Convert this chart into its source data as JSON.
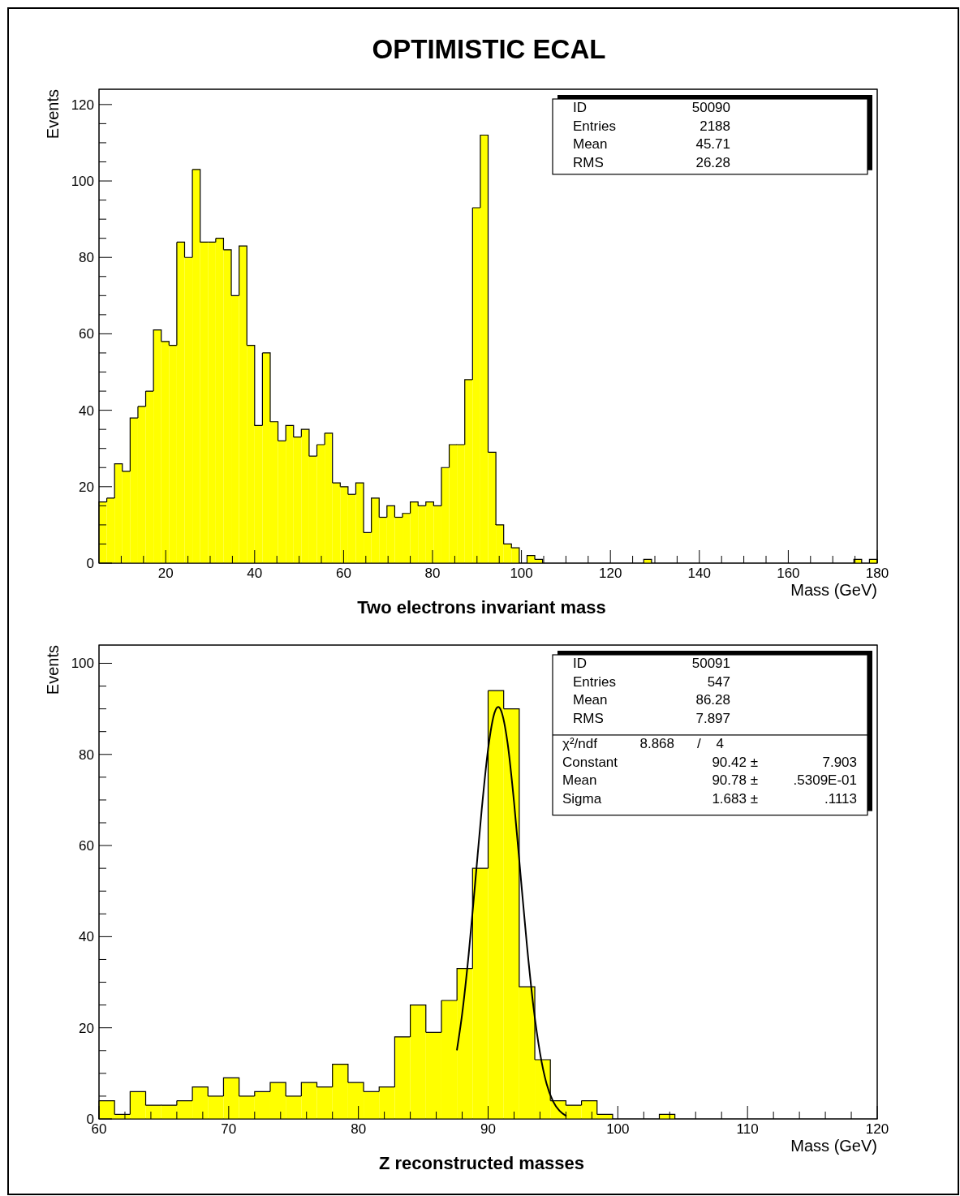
{
  "chart_data": [
    {
      "type": "histogram",
      "title": "OPTIMISTIC ECAL",
      "subtitle": "Two electrons invariant mass",
      "xlabel": "Mass (GeV)",
      "ylabel": "Events",
      "color": "#ffff00",
      "bins": [
        5,
        6.75,
        8.5,
        10.25,
        12,
        13.75,
        15.5,
        17.25,
        19,
        20.75,
        22.5,
        24.25,
        26,
        27.75,
        29.5,
        31.25,
        33,
        34.75,
        36.5,
        38.25,
        40,
        41.75,
        43.5,
        45.25,
        47,
        48.75,
        50.5,
        52.25,
        54,
        55.75,
        57.5,
        59.25,
        61,
        62.75,
        64.5,
        66.25,
        68,
        69.75,
        71.5,
        73.25,
        75,
        76.75,
        78.5,
        80.25,
        82,
        83.75,
        85.5,
        87.25,
        89,
        90.75,
        92.5,
        94.25,
        96,
        97.75,
        99.5,
        101.25,
        103,
        104.75,
        106.5,
        108.25,
        110,
        111.75,
        113.5,
        115.25,
        117,
        118.75,
        120.5,
        122.25,
        124,
        125.75,
        127.5,
        129.25,
        131,
        132.75,
        134.5,
        136.25,
        138,
        139.75,
        141.5,
        143.25,
        145,
        146.75,
        148.5,
        150.25,
        152,
        153.75,
        155.5,
        157.25,
        159,
        160.75,
        162.5,
        164.25,
        166,
        167.75,
        169.5,
        171.25,
        173,
        174.75,
        176.5,
        178.25,
        180
      ],
      "values": [
        16,
        17,
        26,
        24,
        38,
        41,
        45,
        61,
        58,
        57,
        84,
        80,
        103,
        84,
        84,
        85,
        82,
        70,
        83,
        57,
        36,
        55,
        37,
        32,
        36,
        33,
        35,
        28,
        31,
        34,
        21,
        20,
        18,
        21,
        8,
        17,
        12,
        15,
        12,
        13,
        16,
        15,
        16,
        15,
        25,
        31,
        31,
        48,
        93,
        112,
        29,
        10,
        5,
        4,
        0,
        2,
        1,
        0,
        0,
        0,
        0,
        0,
        0,
        0,
        0,
        0,
        0,
        0,
        0,
        0,
        1,
        0,
        0,
        0,
        0,
        0,
        0,
        0,
        0,
        0,
        0,
        0,
        0,
        0,
        0,
        0,
        0,
        0,
        0,
        0,
        0,
        0,
        0,
        0,
        0,
        0,
        0,
        1,
        0,
        1
      ],
      "xlim": [
        5,
        180
      ],
      "ylim": [
        0,
        124
      ],
      "xticks": [
        {
          "value": 10,
          "label": null
        },
        {
          "value": 15,
          "label": null
        },
        20,
        {
          "value": 25,
          "label": null
        },
        {
          "value": 30,
          "label": null
        },
        {
          "value": 35,
          "label": null
        },
        40,
        {
          "value": 45,
          "label": null
        },
        {
          "value": 50,
          "label": null
        },
        {
          "value": 55,
          "label": null
        },
        60,
        {
          "value": 65,
          "label": null
        },
        {
          "value": 70,
          "label": null
        },
        {
          "value": 75,
          "label": null
        },
        80,
        {
          "value": 85,
          "label": null
        },
        {
          "value": 90,
          "label": null
        },
        {
          "value": 95,
          "label": null
        },
        100,
        {
          "value": 105,
          "label": null
        },
        {
          "value": 110,
          "label": null
        },
        {
          "value": 115,
          "label": null
        },
        120,
        {
          "value": 125,
          "label": null
        },
        {
          "value": 130,
          "label": null
        },
        {
          "value": 135,
          "label": null
        },
        140,
        {
          "value": 145,
          "label": null
        },
        {
          "value": 150,
          "label": null
        },
        {
          "value": 155,
          "label": null
        },
        160,
        {
          "value": 165,
          "label": null
        },
        {
          "value": 170,
          "label": null
        },
        {
          "value": 175,
          "label": null
        },
        180
      ],
      "yticks": [
        0,
        {
          "value": 5,
          "label": null
        },
        {
          "value": 10,
          "label": null
        },
        {
          "value": 15,
          "label": null
        },
        20,
        {
          "value": 25,
          "label": null
        },
        {
          "value": 30,
          "label": null
        },
        {
          "value": 35,
          "label": null
        },
        40,
        {
          "value": 45,
          "label": null
        },
        {
          "value": 50,
          "label": null
        },
        {
          "value": 55,
          "label": null
        },
        60,
        {
          "value": 65,
          "label": null
        },
        {
          "value": 70,
          "label": null
        },
        {
          "value": 75,
          "label": null
        },
        80,
        {
          "value": 85,
          "label": null
        },
        {
          "value": 90,
          "label": null
        },
        {
          "value": 95,
          "label": null
        },
        100,
        {
          "value": 105,
          "label": null
        },
        {
          "value": 110,
          "label": null
        },
        {
          "value": 115,
          "label": null
        },
        120
      ],
      "annotations": [
        "ID 50090",
        "Entries 2188",
        "Mean 45.71",
        "RMS 26.28"
      ]
    },
    {
      "type": "histogram",
      "subtitle": "Z reconstructed masses",
      "xlabel": "Mass (GeV)",
      "ylabel": "Events",
      "color": "#ffff00",
      "bins": [
        60,
        61.2,
        62.4,
        63.6,
        64.8,
        66,
        67.2,
        68.4,
        69.6,
        70.8,
        72,
        73.2,
        74.4,
        75.6,
        76.8,
        78,
        79.2,
        80.4,
        81.6,
        82.8,
        84,
        85.2,
        86.4,
        87.6,
        88.8,
        90,
        91.2,
        92.4,
        93.6,
        94.8,
        96,
        97.2,
        98.4,
        99.6,
        100.8,
        102,
        103.2,
        104.4,
        105.6,
        106.8,
        108,
        109.2,
        110.4,
        111.6,
        112.8,
        114,
        115.2,
        116.4,
        117.6,
        118.8,
        120
      ],
      "values": [
        4,
        1,
        6,
        3,
        3,
        4,
        7,
        5,
        9,
        5,
        6,
        8,
        5,
        8,
        7,
        12,
        8,
        6,
        7,
        18,
        25,
        19,
        26,
        33,
        55,
        94,
        90,
        29,
        13,
        4,
        3,
        4,
        1,
        0,
        0,
        0,
        1,
        0,
        0,
        0,
        0,
        0,
        0,
        0,
        0,
        0,
        0,
        0,
        0,
        0
      ],
      "series": [
        {
          "type": "line",
          "color": "#000000",
          "x": [
            87.6,
            88,
            88.5,
            89,
            89.5,
            90,
            90.5,
            90.78,
            91,
            91.5,
            92,
            92.5,
            93,
            93.5,
            94,
            94.5,
            95,
            95.5,
            96
          ],
          "values": [
            15.2,
            23.1,
            36.1,
            51.7,
            67.7,
            81.2,
            89.2,
            90.4,
            89.6,
            82.5,
            69.5,
            53.6,
            37.9,
            24.5,
            14.5,
            7.8,
            3.9,
            1.8,
            0.7
          ]
        }
      ],
      "xlim": [
        60,
        120
      ],
      "ylim": [
        0,
        104
      ],
      "xticks": [
        60,
        {
          "value": 62,
          "label": null
        },
        {
          "value": 64,
          "label": null
        },
        {
          "value": 66,
          "label": null
        },
        {
          "value": 68,
          "label": null
        },
        70,
        {
          "value": 72,
          "label": null
        },
        {
          "value": 74,
          "label": null
        },
        {
          "value": 76,
          "label": null
        },
        {
          "value": 78,
          "label": null
        },
        80,
        {
          "value": 82,
          "label": null
        },
        {
          "value": 84,
          "label": null
        },
        {
          "value": 86,
          "label": null
        },
        {
          "value": 88,
          "label": null
        },
        90,
        {
          "value": 92,
          "label": null
        },
        {
          "value": 94,
          "label": null
        },
        {
          "value": 96,
          "label": null
        },
        {
          "value": 98,
          "label": null
        },
        100,
        {
          "value": 102,
          "label": null
        },
        {
          "value": 104,
          "label": null
        },
        {
          "value": 106,
          "label": null
        },
        {
          "value": 108,
          "label": null
        },
        110,
        {
          "value": 112,
          "label": null
        },
        {
          "value": 114,
          "label": null
        },
        {
          "value": 116,
          "label": null
        },
        {
          "value": 118,
          "label": null
        },
        120
      ],
      "yticks": [
        0,
        {
          "value": 5,
          "label": null
        },
        {
          "value": 10,
          "label": null
        },
        {
          "value": 15,
          "label": null
        },
        20,
        {
          "value": 25,
          "label": null
        },
        {
          "value": 30,
          "label": null
        },
        {
          "value": 35,
          "label": null
        },
        40,
        {
          "value": 45,
          "label": null
        },
        {
          "value": 50,
          "label": null
        },
        {
          "value": 55,
          "label": null
        },
        60,
        {
          "value": 65,
          "label": null
        },
        {
          "value": 70,
          "label": null
        },
        {
          "value": 75,
          "label": null
        },
        80,
        {
          "value": 85,
          "label": null
        },
        {
          "value": 90,
          "label": null
        },
        {
          "value": 95,
          "label": null
        },
        100
      ],
      "annotations": [
        "ID 50091",
        "Entries 547",
        "Mean 86.28",
        "RMS 7.897",
        "χ²/ndf 8.868 / 4",
        "Constant 90.42 ± 7.903",
        "Mean 90.78 ± .5309E-01",
        "Sigma 1.683 ± .1113"
      ]
    }
  ]
}
